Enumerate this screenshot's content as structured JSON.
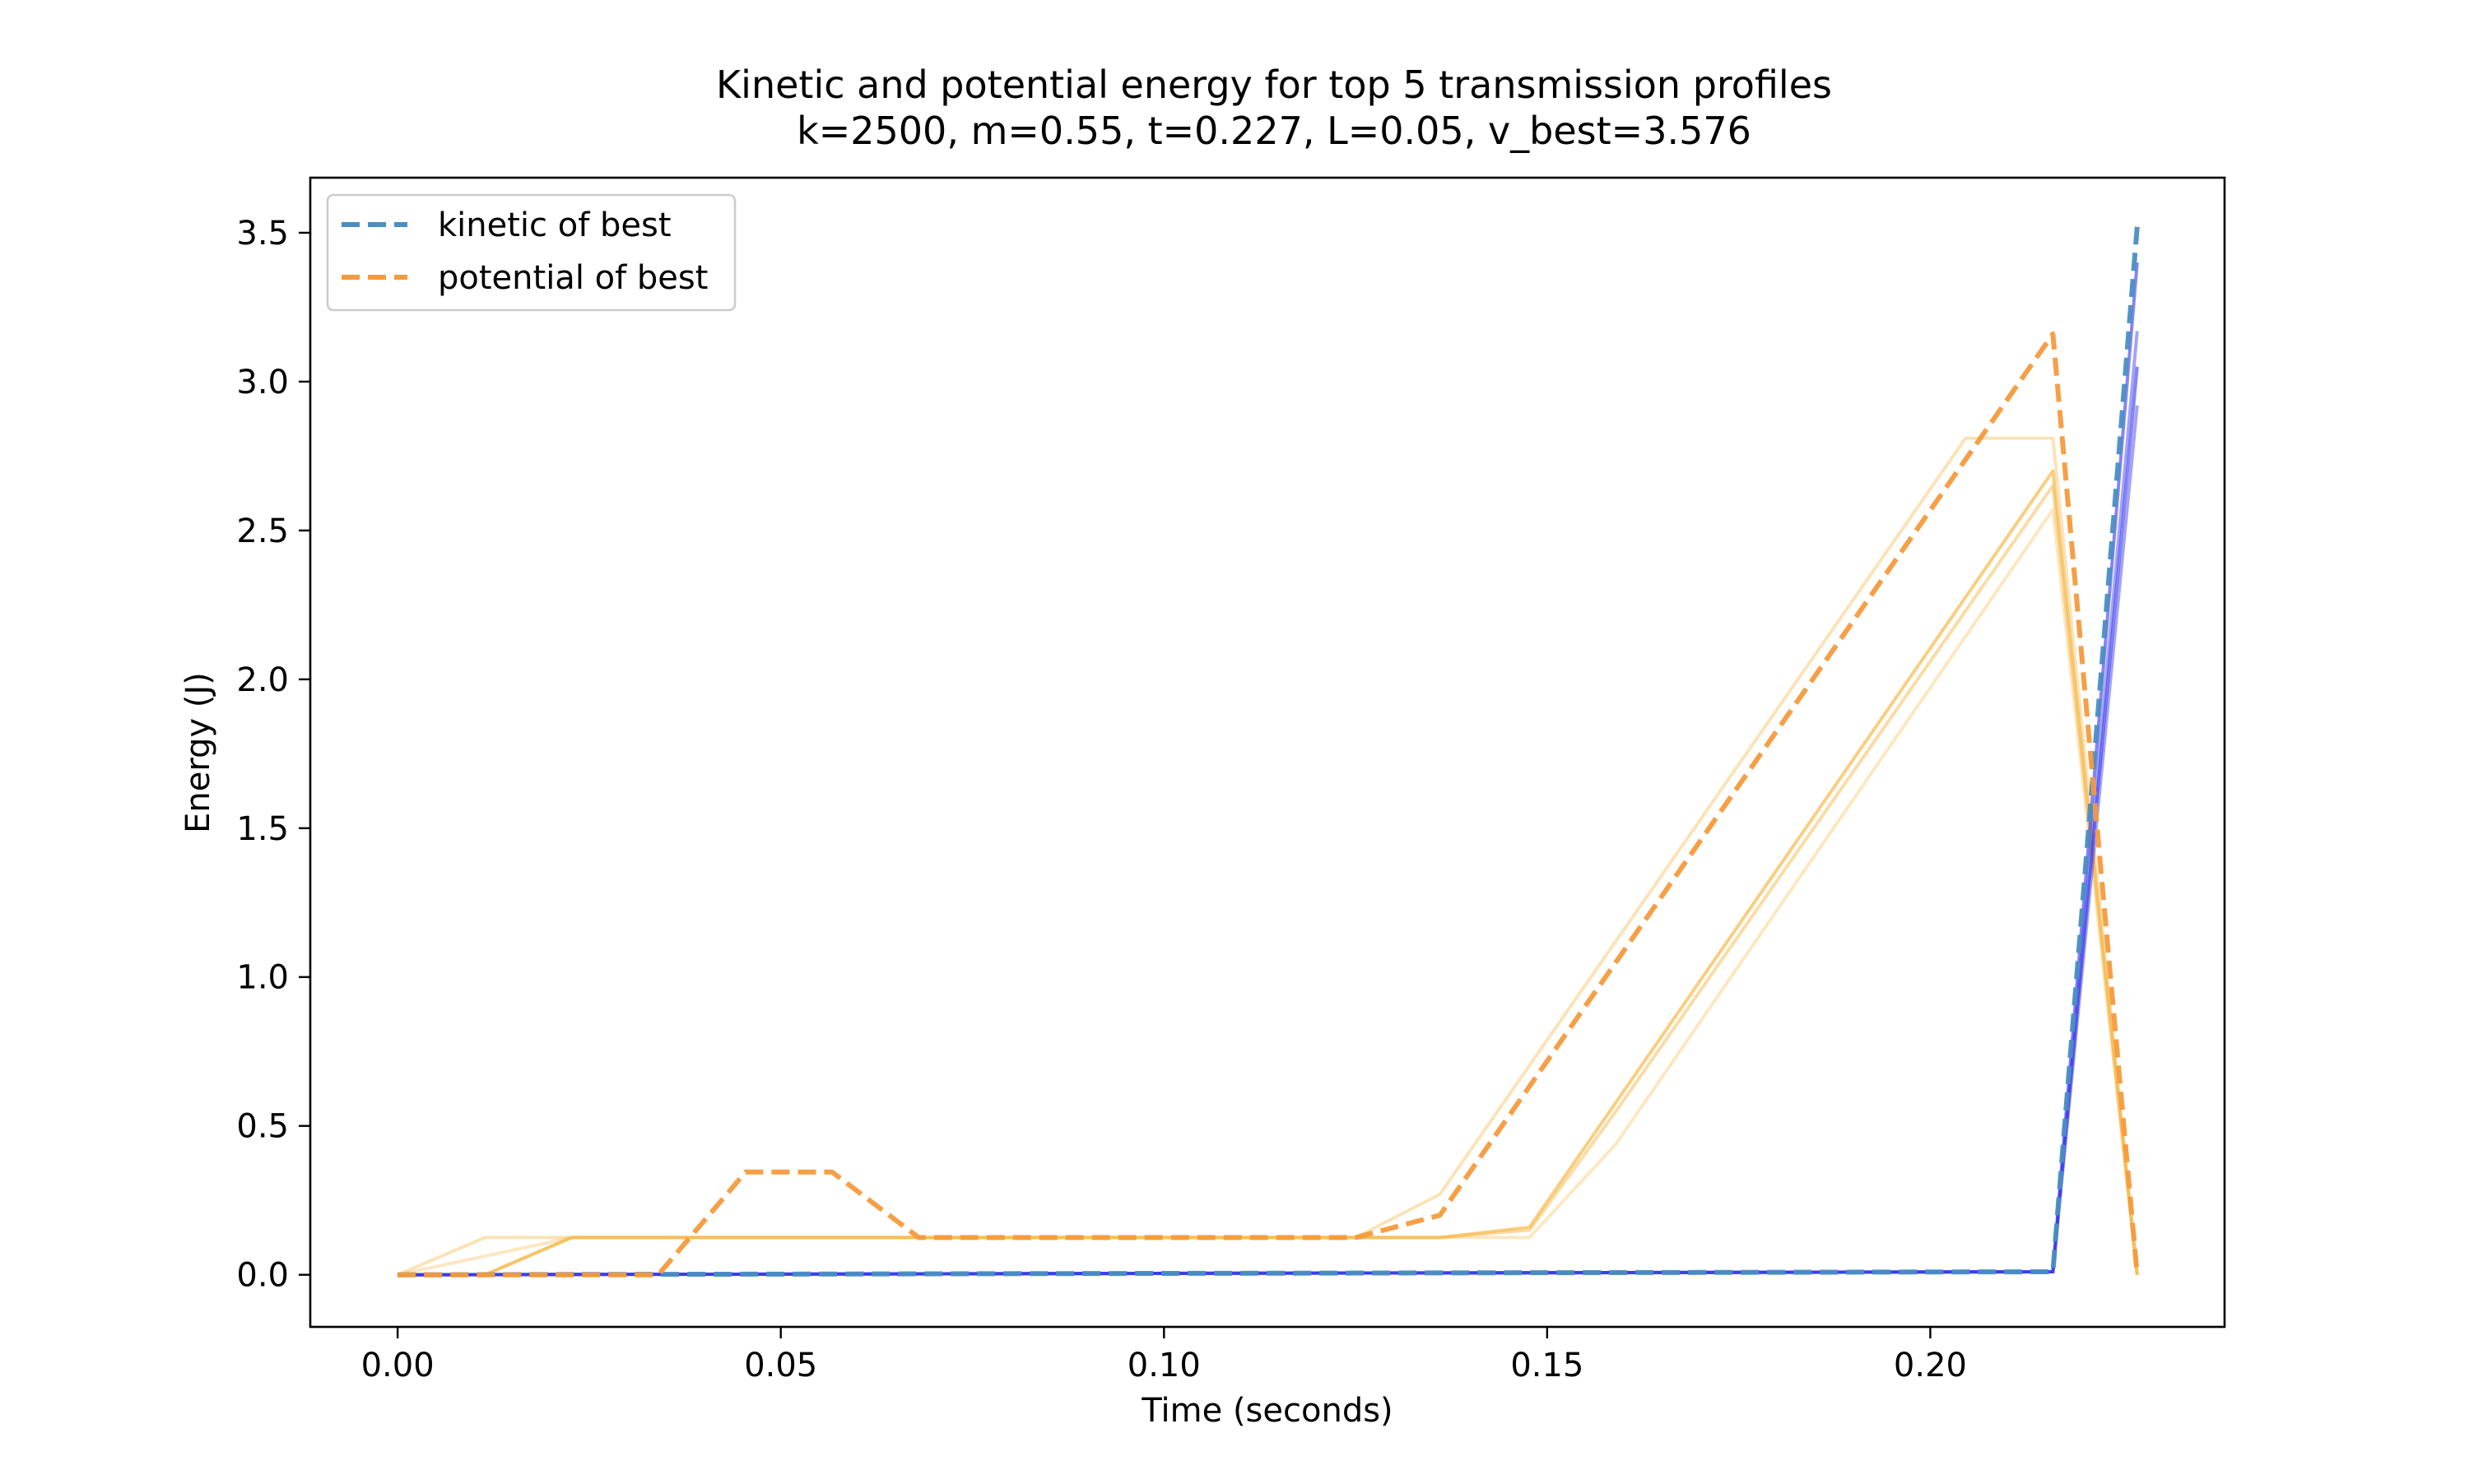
{
  "chart_data": {
    "type": "line",
    "title": "Kinetic and potential energy for top 5 transmission profiles",
    "subtitle": "k=2500, m=0.55, t=0.227, L=0.05, v_best=3.576",
    "xlabel": "Time (seconds)",
    "ylabel": "Energy (J)",
    "xlim": [
      -0.0114,
      0.2384
    ],
    "ylim": [
      -0.175,
      3.685
    ],
    "x_ticks": [
      0.0,
      0.05,
      0.1,
      0.15,
      0.2
    ],
    "x_tick_labels": [
      "0.00",
      "0.05",
      "0.10",
      "0.15",
      "0.20"
    ],
    "y_ticks": [
      0.0,
      0.5,
      1.0,
      1.5,
      2.0,
      2.5,
      3.0,
      3.5
    ],
    "y_tick_labels": [
      "0.0",
      "0.5",
      "1.0",
      "1.5",
      "2.0",
      "2.5",
      "3.0",
      "3.5"
    ],
    "grid": false,
    "legend_position": "top-left",
    "legend": [
      "kinetic of best",
      "potential of best"
    ],
    "colors": {
      "kinetic_best": "#4a8ec2",
      "potential_best": "#f59a3c",
      "kinetic_others": "#3333ee",
      "potential_others": "#f6b94c"
    },
    "series": [
      {
        "name": "kinetic of best",
        "role": "best",
        "kind": "kinetic",
        "x": [
          0.0,
          0.216,
          0.227
        ],
        "y": [
          0.0,
          0.01,
          3.52
        ]
      },
      {
        "name": "potential of best",
        "role": "best",
        "kind": "potential",
        "x": [
          0.0,
          0.034,
          0.0454,
          0.0567,
          0.068,
          0.125,
          0.136,
          0.216,
          0.227
        ],
        "y": [
          0.0,
          0.0,
          0.345,
          0.345,
          0.125,
          0.125,
          0.2,
          3.16,
          0.0
        ]
      },
      {
        "role": "other",
        "kind": "potential",
        "opacity": 0.4,
        "x": [
          0.0,
          0.0114,
          0.125,
          0.136,
          0.2046,
          0.216,
          0.227
        ],
        "y": [
          0.0,
          0.125,
          0.125,
          0.27,
          2.81,
          2.81,
          0.0
        ]
      },
      {
        "role": "other",
        "kind": "potential",
        "opacity": 0.7,
        "x": [
          0.0,
          0.0114,
          0.0227,
          0.136,
          0.1477,
          0.216,
          0.227
        ],
        "y": [
          0.0,
          0.0,
          0.125,
          0.125,
          0.16,
          2.7,
          0.0
        ]
      },
      {
        "role": "other",
        "kind": "potential",
        "opacity": 0.35,
        "x": [
          0.0,
          0.0227,
          0.1477,
          0.159,
          0.216,
          0.227
        ],
        "y": [
          0.0,
          0.125,
          0.125,
          0.44,
          2.57,
          0.0
        ]
      },
      {
        "role": "other",
        "kind": "potential",
        "opacity": 0.5,
        "x": [
          0.0,
          0.0114,
          0.0227,
          0.136,
          0.1477,
          0.159,
          0.216,
          0.227
        ],
        "y": [
          0.0,
          0.0,
          0.125,
          0.125,
          0.15,
          0.55,
          2.65,
          0.0
        ]
      },
      {
        "role": "other",
        "kind": "kinetic",
        "opacity": 0.45,
        "x": [
          0.0,
          0.216,
          0.227
        ],
        "y": [
          0.0,
          0.01,
          3.17
        ]
      },
      {
        "role": "other",
        "kind": "kinetic",
        "opacity": 0.6,
        "x": [
          0.0,
          0.216,
          0.227
        ],
        "y": [
          0.0,
          0.01,
          3.05
        ]
      },
      {
        "role": "other",
        "kind": "kinetic",
        "opacity": 0.45,
        "x": [
          0.0,
          0.216,
          0.227
        ],
        "y": [
          0.0,
          0.01,
          2.92
        ]
      },
      {
        "role": "other",
        "kind": "kinetic",
        "opacity": 0.6,
        "x": [
          0.0,
          0.216,
          0.227
        ],
        "y": [
          0.0,
          0.01,
          3.4
        ]
      }
    ]
  }
}
